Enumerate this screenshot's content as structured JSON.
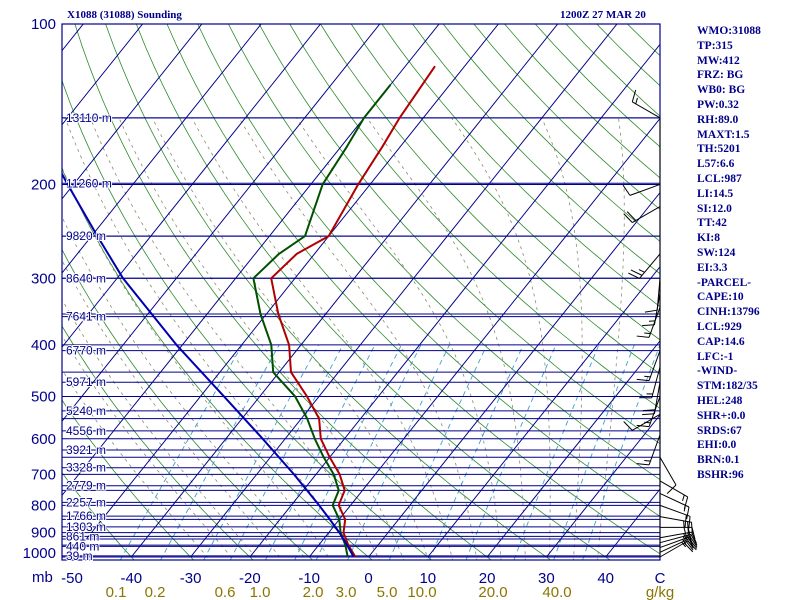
{
  "header": {
    "left": "X1088 (31088) Sounding",
    "right": "1200Z 27 MAR 20"
  },
  "indices": [
    "WMO:31088",
    "TP:315",
    "MW:412",
    "FRZ: BG",
    "WB0: BG",
    "PW:0.32",
    "RH:89.0",
    "MAXT:1.5",
    "TH:5201",
    "L57:6.6",
    "LCL:987",
    "LI:14.5",
    "SI:12.0",
    "TT:42",
    "KI:8",
    "SW:124",
    "EI:3.3",
    "-PARCEL-",
    "CAPE:10",
    "CINH:13796",
    "LCL:929",
    "CAP:14.6",
    "LFC:-1",
    "-WIND-",
    "STM:182/35",
    "HEL:248",
    "SHR+:0.0",
    "SRDS:67",
    "EHI:0.0",
    "BRN:0.1",
    "BSHR:96"
  ],
  "colors": {
    "axes": "#00008b",
    "isobar": "#00008b",
    "isotherm": "#00008b",
    "dry_adiabat": "#2e8b2e",
    "moist_adiabat": "#8b8b70",
    "mixing_ratio": "#3aa0cc",
    "temperature": "#b00000",
    "dewpoint": "#005000",
    "parcel": "#0000b0",
    "mixing_label": "#8b7500",
    "wind": "#000000"
  },
  "chart_data": {
    "type": "line",
    "diagram": "skew-T log-p",
    "title": "X1088 (31088) Sounding",
    "time": "1200Z 27 MAR 20",
    "xlabel": "C",
    "ylabel": "mb",
    "ylim": [
      1000,
      100
    ],
    "xlim": [
      -50,
      50
    ],
    "pressure_ticks": [
      100,
      200,
      300,
      400,
      500,
      600,
      700,
      800,
      900,
      1000
    ],
    "pressure_tick_labels": [
      "100",
      "200",
      "300",
      "400",
      "500",
      "600",
      "700",
      "800",
      "900",
      "1000"
    ],
    "temperature_ticks": [
      -50,
      -40,
      -30,
      -20,
      -10,
      0,
      10,
      20,
      30,
      40
    ],
    "temperature_tick_labels": [
      "-50",
      "-40",
      "-30",
      "-20",
      "-10",
      "0",
      "10",
      "20",
      "30",
      "40"
    ],
    "axis_unit_left": "mb",
    "axis_unit_right": "C",
    "mixing_ratio_labels": [
      "0.1",
      "0.2",
      "0.6",
      "1.0",
      "2.0",
      "3.0",
      "5.0",
      "10.0",
      "20.0",
      "40.0"
    ],
    "mixing_ratio_unit": "g/kg",
    "height_levels": [
      {
        "p": 150,
        "label": "13110 m"
      },
      {
        "p": 199,
        "label": "11260 m"
      },
      {
        "p": 250,
        "label": "9820 m"
      },
      {
        "p": 300,
        "label": "8640 m"
      },
      {
        "p": 354,
        "label": "7641 m"
      },
      {
        "p": 410,
        "label": "6770 m"
      },
      {
        "p": 470,
        "label": "5971 m"
      },
      {
        "p": 532,
        "label": "5240 m"
      },
      {
        "p": 580,
        "label": "4556 m"
      },
      {
        "p": 630,
        "label": "3921 m"
      },
      {
        "p": 680,
        "label": "3328 m"
      },
      {
        "p": 735,
        "label": "2779 m"
      },
      {
        "p": 790,
        "label": "2257 m"
      },
      {
        "p": 838,
        "label": "1766 m"
      },
      {
        "p": 878,
        "label": "1303 m"
      },
      {
        "p": 915,
        "label": "861 m"
      },
      {
        "p": 955,
        "label": "440 m"
      },
      {
        "p": 995,
        "label": "39 m"
      }
    ],
    "series": [
      {
        "key": "temperature",
        "points": [
          {
            "p": 1000,
            "t": -2.2
          },
          {
            "p": 950,
            "t": -5
          },
          {
            "p": 900,
            "t": -7.5
          },
          {
            "p": 850,
            "t": -9
          },
          {
            "p": 800,
            "t": -12
          },
          {
            "p": 750,
            "t": -13
          },
          {
            "p": 700,
            "t": -16
          },
          {
            "p": 650,
            "t": -20
          },
          {
            "p": 600,
            "t": -24
          },
          {
            "p": 550,
            "t": -27
          },
          {
            "p": 500,
            "t": -32
          },
          {
            "p": 450,
            "t": -38
          },
          {
            "p": 400,
            "t": -42
          },
          {
            "p": 350,
            "t": -48
          },
          {
            "p": 300,
            "t": -54
          },
          {
            "p": 270,
            "t": -53
          },
          {
            "p": 250,
            "t": -50
          },
          {
            "p": 200,
            "t": -52
          },
          {
            "p": 170,
            "t": -53
          },
          {
            "p": 150,
            "t": -54
          },
          {
            "p": 120,
            "t": -55
          }
        ]
      },
      {
        "key": "dewpoint",
        "points": [
          {
            "p": 1000,
            "t": -3.5
          },
          {
            "p": 950,
            "t": -5.5
          },
          {
            "p": 900,
            "t": -8
          },
          {
            "p": 850,
            "t": -10
          },
          {
            "p": 800,
            "t": -13
          },
          {
            "p": 750,
            "t": -14
          },
          {
            "p": 700,
            "t": -17
          },
          {
            "p": 650,
            "t": -21
          },
          {
            "p": 600,
            "t": -25
          },
          {
            "p": 550,
            "t": -29
          },
          {
            "p": 500,
            "t": -34
          },
          {
            "p": 450,
            "t": -41
          },
          {
            "p": 400,
            "t": -45
          },
          {
            "p": 350,
            "t": -51
          },
          {
            "p": 300,
            "t": -57
          },
          {
            "p": 270,
            "t": -56
          },
          {
            "p": 250,
            "t": -54
          },
          {
            "p": 200,
            "t": -58
          },
          {
            "p": 170,
            "t": -59
          },
          {
            "p": 150,
            "t": -60
          },
          {
            "p": 130,
            "t": -60
          }
        ]
      },
      {
        "key": "parcel",
        "points": [
          {
            "p": 1000,
            "t": -2.5
          },
          {
            "p": 950,
            "t": -5.2
          },
          {
            "p": 900,
            "t": -8.2
          },
          {
            "p": 850,
            "t": -11.6
          },
          {
            "p": 800,
            "t": -15.3
          },
          {
            "p": 700,
            "t": -23.7
          },
          {
            "p": 600,
            "t": -33.8
          },
          {
            "p": 500,
            "t": -46
          },
          {
            "p": 400,
            "t": -61
          },
          {
            "p": 300,
            "t": -79
          },
          {
            "p": 250,
            "t": -89
          },
          {
            "p": 200,
            "t": -101
          },
          {
            "p": 150,
            "t": -116
          },
          {
            "p": 110,
            "t": -129
          }
        ]
      }
    ],
    "wind_barbs": [
      {
        "p": 1000,
        "dir": 60,
        "spd": 20
      },
      {
        "p": 980,
        "dir": 65,
        "spd": 25
      },
      {
        "p": 960,
        "dir": 70,
        "spd": 25
      },
      {
        "p": 940,
        "dir": 75,
        "spd": 25
      },
      {
        "p": 920,
        "dir": 80,
        "spd": 25
      },
      {
        "p": 880,
        "dir": 90,
        "spd": 30
      },
      {
        "p": 840,
        "dir": 100,
        "spd": 25
      },
      {
        "p": 800,
        "dir": 110,
        "spd": 20
      },
      {
        "p": 760,
        "dir": 115,
        "spd": 15
      },
      {
        "p": 720,
        "dir": 120,
        "spd": 15
      },
      {
        "p": 650,
        "dir": 150,
        "spd": 10
      },
      {
        "p": 590,
        "dir": 200,
        "spd": 15
      },
      {
        "p": 540,
        "dir": 240,
        "spd": 10
      },
      {
        "p": 500,
        "dir": 200,
        "spd": 15
      },
      {
        "p": 470,
        "dir": 190,
        "spd": 20
      },
      {
        "p": 440,
        "dir": 195,
        "spd": 15
      },
      {
        "p": 410,
        "dir": 200,
        "spd": 15
      },
      {
        "p": 340,
        "dir": 200,
        "spd": 15
      },
      {
        "p": 320,
        "dir": 190,
        "spd": 15
      },
      {
        "p": 300,
        "dir": 185,
        "spd": 10
      },
      {
        "p": 270,
        "dir": 220,
        "spd": 25
      },
      {
        "p": 220,
        "dir": 240,
        "spd": 20
      },
      {
        "p": 200,
        "dir": 250,
        "spd": 10
      },
      {
        "p": 150,
        "dir": 300,
        "spd": 15
      }
    ],
    "grid": true
  }
}
